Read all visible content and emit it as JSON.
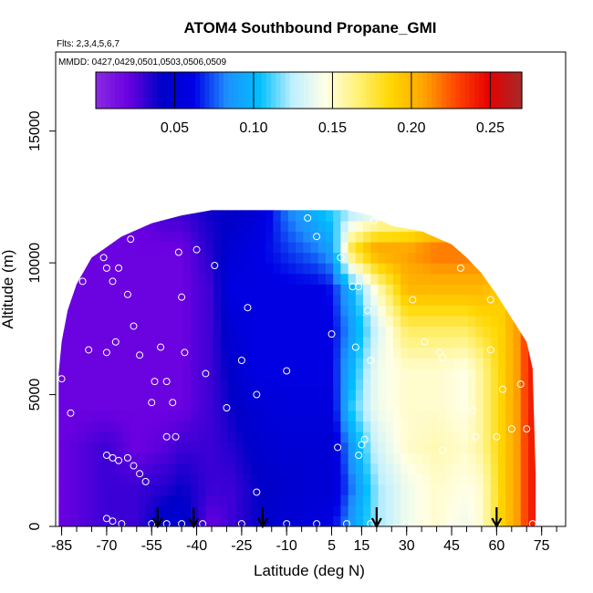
{
  "chart_data": {
    "type": "heatmap",
    "title": "ATOM4 Southbound Propane_GMI",
    "subtitle_flights": "Flts: 2,3,4,5,6,7",
    "subtitle_dates": "MMDD: 0427,0429,0501,0503,0506,0509",
    "xlabel": "Latitude (deg N)",
    "ylabel": "Altitude (m)",
    "xlim": [
      -87,
      83
    ],
    "ylim": [
      0,
      18000
    ],
    "x_ticks": [
      -85,
      -70,
      -55,
      -40,
      -25,
      -10,
      5,
      15,
      30,
      45,
      60,
      75
    ],
    "y_ticks": [
      0,
      5000,
      10000,
      15000
    ],
    "colorbar": {
      "min": 0.0,
      "max": 0.27,
      "ticks": [
        0.05,
        0.1,
        0.15,
        0.2,
        0.25
      ],
      "tick_labels": [
        "0.05",
        "0.10",
        "0.15",
        "0.20",
        "0.25"
      ],
      "colors": [
        "#8a2be2",
        "#6a00e0",
        "#0000c8",
        "#0000e6",
        "#1e90ff",
        "#00bfff",
        "#bfefff",
        "#ffffe6",
        "#fff176",
        "#ffd700",
        "#ffa500",
        "#ff4500",
        "#e60000",
        "#a52a2a"
      ]
    },
    "field_nodes": [
      {
        "lat": -86,
        "values": [
          0.02,
          0.02,
          0.02,
          0.02,
          0.02,
          0.02,
          0.02,
          0.02,
          0.02
        ]
      },
      {
        "lat": -70,
        "values": [
          0.03,
          0.03,
          0.03,
          0.02,
          0.02,
          0.02,
          0.02,
          0.02,
          0.02
        ]
      },
      {
        "lat": -60,
        "values": [
          0.03,
          0.03,
          0.02,
          0.02,
          0.02,
          0.02,
          0.02,
          0.02,
          0.02
        ]
      },
      {
        "lat": -50,
        "values": [
          0.05,
          0.035,
          0.025,
          0.02,
          0.02,
          0.02,
          0.02,
          0.02,
          0.03
        ]
      },
      {
        "lat": -45,
        "values": [
          0.05,
          0.04,
          0.03,
          0.02,
          0.02,
          0.02,
          0.02,
          0.02,
          0.03
        ]
      },
      {
        "lat": -35,
        "values": [
          0.02,
          0.03,
          0.03,
          0.03,
          0.03,
          0.03,
          0.03,
          0.035,
          0.04
        ]
      },
      {
        "lat": -28,
        "values": [
          0.03,
          0.03,
          0.035,
          0.04,
          0.045,
          0.05,
          0.06,
          0.05,
          0.04
        ]
      },
      {
        "lat": -20,
        "values": [
          0.04,
          0.04,
          0.045,
          0.05,
          0.06,
          0.06,
          0.06,
          0.06,
          0.05
        ]
      },
      {
        "lat": -10,
        "values": [
          0.05,
          0.045,
          0.05,
          0.055,
          0.06,
          0.06,
          0.06,
          0.07,
          0.08
        ]
      },
      {
        "lat": 0,
        "values": [
          0.055,
          0.05,
          0.05,
          0.055,
          0.06,
          0.06,
          0.06,
          0.08,
          0.1
        ]
      },
      {
        "lat": 5,
        "values": [
          0.06,
          0.05,
          0.05,
          0.055,
          0.06,
          0.06,
          0.065,
          0.09,
          0.11
        ]
      },
      {
        "lat": 12,
        "values": [
          0.09,
          0.08,
          0.09,
          0.11,
          0.1,
          0.09,
          0.1,
          0.18,
          0.12
        ]
      },
      {
        "lat": 20,
        "values": [
          0.12,
          0.12,
          0.13,
          0.14,
          0.14,
          0.13,
          0.15,
          0.21,
          0.13
        ]
      },
      {
        "lat": 30,
        "values": [
          0.14,
          0.14,
          0.15,
          0.15,
          0.15,
          0.17,
          0.2,
          0.21,
          0.14
        ]
      },
      {
        "lat": 40,
        "values": [
          0.15,
          0.15,
          0.155,
          0.15,
          0.15,
          0.17,
          0.2,
          0.22,
          0.16
        ]
      },
      {
        "lat": 50,
        "values": [
          0.14,
          0.145,
          0.15,
          0.145,
          0.145,
          0.17,
          0.2,
          0.22,
          0.17
        ]
      },
      {
        "lat": 55,
        "values": [
          0.15,
          0.15,
          0.16,
          0.16,
          0.16,
          0.18,
          0.2,
          0.22,
          0.18
        ]
      },
      {
        "lat": 62,
        "values": [
          0.19,
          0.19,
          0.19,
          0.19,
          0.19,
          0.19,
          0.19,
          0.19,
          0.19
        ]
      },
      {
        "lat": 67,
        "values": [
          0.21,
          0.21,
          0.21,
          0.21,
          0.21,
          0.21,
          0.21,
          0.21,
          0.21
        ]
      },
      {
        "lat": 71,
        "values": [
          0.24,
          0.24,
          0.24,
          0.24,
          0.24,
          0.24,
          0.24,
          0.24,
          0.24
        ]
      }
    ],
    "field_altitudes": [
      0,
      1500,
      3000,
      4500,
      6000,
      7500,
      9000,
      10500,
      12000
    ],
    "coverage_upper_altitude": [
      [
        -86,
        5800
      ],
      [
        -85,
        7000
      ],
      [
        -83,
        8200
      ],
      [
        -80,
        9200
      ],
      [
        -75,
        10200
      ],
      [
        -65,
        11000
      ],
      [
        -55,
        11500
      ],
      [
        -45,
        11800
      ],
      [
        -35,
        12000
      ],
      [
        -25,
        12000
      ],
      [
        -10,
        12000
      ],
      [
        0,
        12000
      ],
      [
        10,
        12000
      ],
      [
        18,
        11800
      ],
      [
        25,
        11400
      ],
      [
        35,
        11200
      ],
      [
        45,
        10700
      ],
      [
        50,
        10200
      ],
      [
        55,
        9600
      ],
      [
        60,
        8800
      ],
      [
        65,
        7900
      ],
      [
        70,
        7000
      ],
      [
        72,
        6000
      ],
      [
        73,
        2000
      ],
      [
        73,
        0
      ]
    ],
    "sample_points": [
      [
        -85,
        5600
      ],
      [
        -82,
        4300
      ],
      [
        -78,
        9300
      ],
      [
        -76,
        6700
      ],
      [
        -71,
        10200
      ],
      [
        -70,
        9800
      ],
      [
        -70,
        6600
      ],
      [
        -68,
        9300
      ],
      [
        -67,
        7000
      ],
      [
        -66,
        9800
      ],
      [
        -63,
        8800
      ],
      [
        -62,
        10900
      ],
      [
        -61,
        7600
      ],
      [
        -59,
        6500
      ],
      [
        -57,
        11600
      ],
      [
        -55,
        4700
      ],
      [
        -54,
        5500
      ],
      [
        -52,
        6800
      ],
      [
        -50,
        3400
      ],
      [
        -50,
        5500
      ],
      [
        -48,
        4700
      ],
      [
        -47,
        3400
      ],
      [
        -46,
        10400
      ],
      [
        -45,
        8700
      ],
      [
        -44,
        6600
      ],
      [
        -40,
        10500
      ],
      [
        -37,
        5800
      ],
      [
        -34,
        9900
      ],
      [
        -30,
        4500
      ],
      [
        -25,
        6300
      ],
      [
        -23,
        8300
      ],
      [
        -20,
        5000
      ],
      [
        -20,
        1300
      ],
      [
        -10,
        5900
      ],
      [
        -3,
        11700
      ],
      [
        0,
        11000
      ],
      [
        5,
        7300
      ],
      [
        7,
        3000
      ],
      [
        8,
        10200
      ],
      [
        12,
        9100
      ],
      [
        13,
        6800
      ],
      [
        14,
        9100
      ],
      [
        14,
        2700
      ],
      [
        15,
        3100
      ],
      [
        16,
        3300
      ],
      [
        17,
        8200
      ],
      [
        18,
        6300
      ],
      [
        19,
        11600
      ],
      [
        32,
        8600
      ],
      [
        36,
        7000
      ],
      [
        41,
        6600
      ],
      [
        42,
        2900
      ],
      [
        42,
        6400
      ],
      [
        48,
        9800
      ],
      [
        51,
        10400
      ],
      [
        52,
        4400
      ],
      [
        53,
        3400
      ],
      [
        58,
        6700
      ],
      [
        58,
        8600
      ],
      [
        60,
        3400
      ],
      [
        62,
        5200
      ],
      [
        65,
        3700
      ],
      [
        68,
        5400
      ],
      [
        70,
        3700
      ],
      [
        71,
        7300
      ],
      [
        -70,
        2700
      ],
      [
        -68,
        2600
      ],
      [
        -66,
        2500
      ],
      [
        -63,
        2600
      ],
      [
        -61,
        2300
      ],
      [
        -59,
        2000
      ],
      [
        -57,
        1700
      ],
      [
        -70,
        300
      ],
      [
        -68,
        200
      ],
      [
        -65,
        100
      ],
      [
        -55,
        100
      ],
      [
        -50,
        100
      ],
      [
        -45,
        100
      ],
      [
        -38,
        100
      ],
      [
        -25,
        100
      ],
      [
        -10,
        100
      ],
      [
        0,
        100
      ],
      [
        10,
        100
      ],
      [
        18,
        100
      ],
      [
        30,
        100
      ],
      [
        45,
        100
      ],
      [
        60,
        100
      ],
      [
        72,
        100
      ]
    ],
    "flight_markers_lat": [
      -53,
      -41,
      -18,
      20,
      60
    ]
  }
}
